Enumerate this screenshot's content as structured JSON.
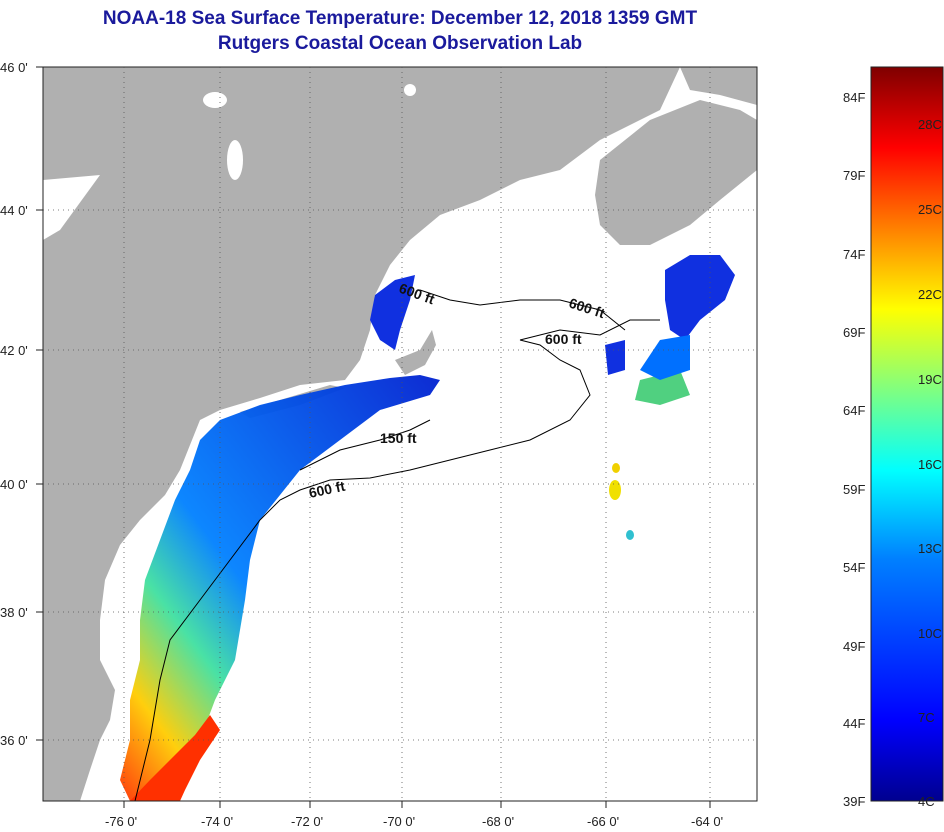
{
  "title": "NOAA-18 Sea Surface Temperature:  December 12, 2018 1359 GMT",
  "subtitle": "Rutgers Coastal Ocean Observation Lab",
  "map": {
    "lat_labels": [
      "46 0'",
      "44 0'",
      "42 0'",
      "40 0'",
      "38 0'",
      "36 0'"
    ],
    "lon_labels": [
      "-76 0'",
      "-74 0'",
      "-72 0'",
      "-70 0'",
      "-68 0'",
      "-66 0'",
      "-64 0'"
    ],
    "contour_labels": [
      "600 ft",
      "600 ft",
      "600 ft",
      "150 ft",
      "600 ft"
    ],
    "colors": {
      "land": "#b0b0b0",
      "ocean_missing": "#ffffff",
      "grid": "#555555"
    }
  },
  "colorbar": {
    "fahrenheit_labels": [
      "84F",
      "79F",
      "74F",
      "69F",
      "64F",
      "59F",
      "54F",
      "49F",
      "44F",
      "39F"
    ],
    "celsius_labels": [
      "28C",
      "25C",
      "22C",
      "19C",
      "16C",
      "13C",
      "10C",
      "7C",
      "4C"
    ],
    "colors": [
      "#7f0000",
      "#ff0000",
      "#ff8000",
      "#ffff00",
      "#80ff80",
      "#00ffff",
      "#0080ff",
      "#0000ff",
      "#00008f"
    ]
  }
}
